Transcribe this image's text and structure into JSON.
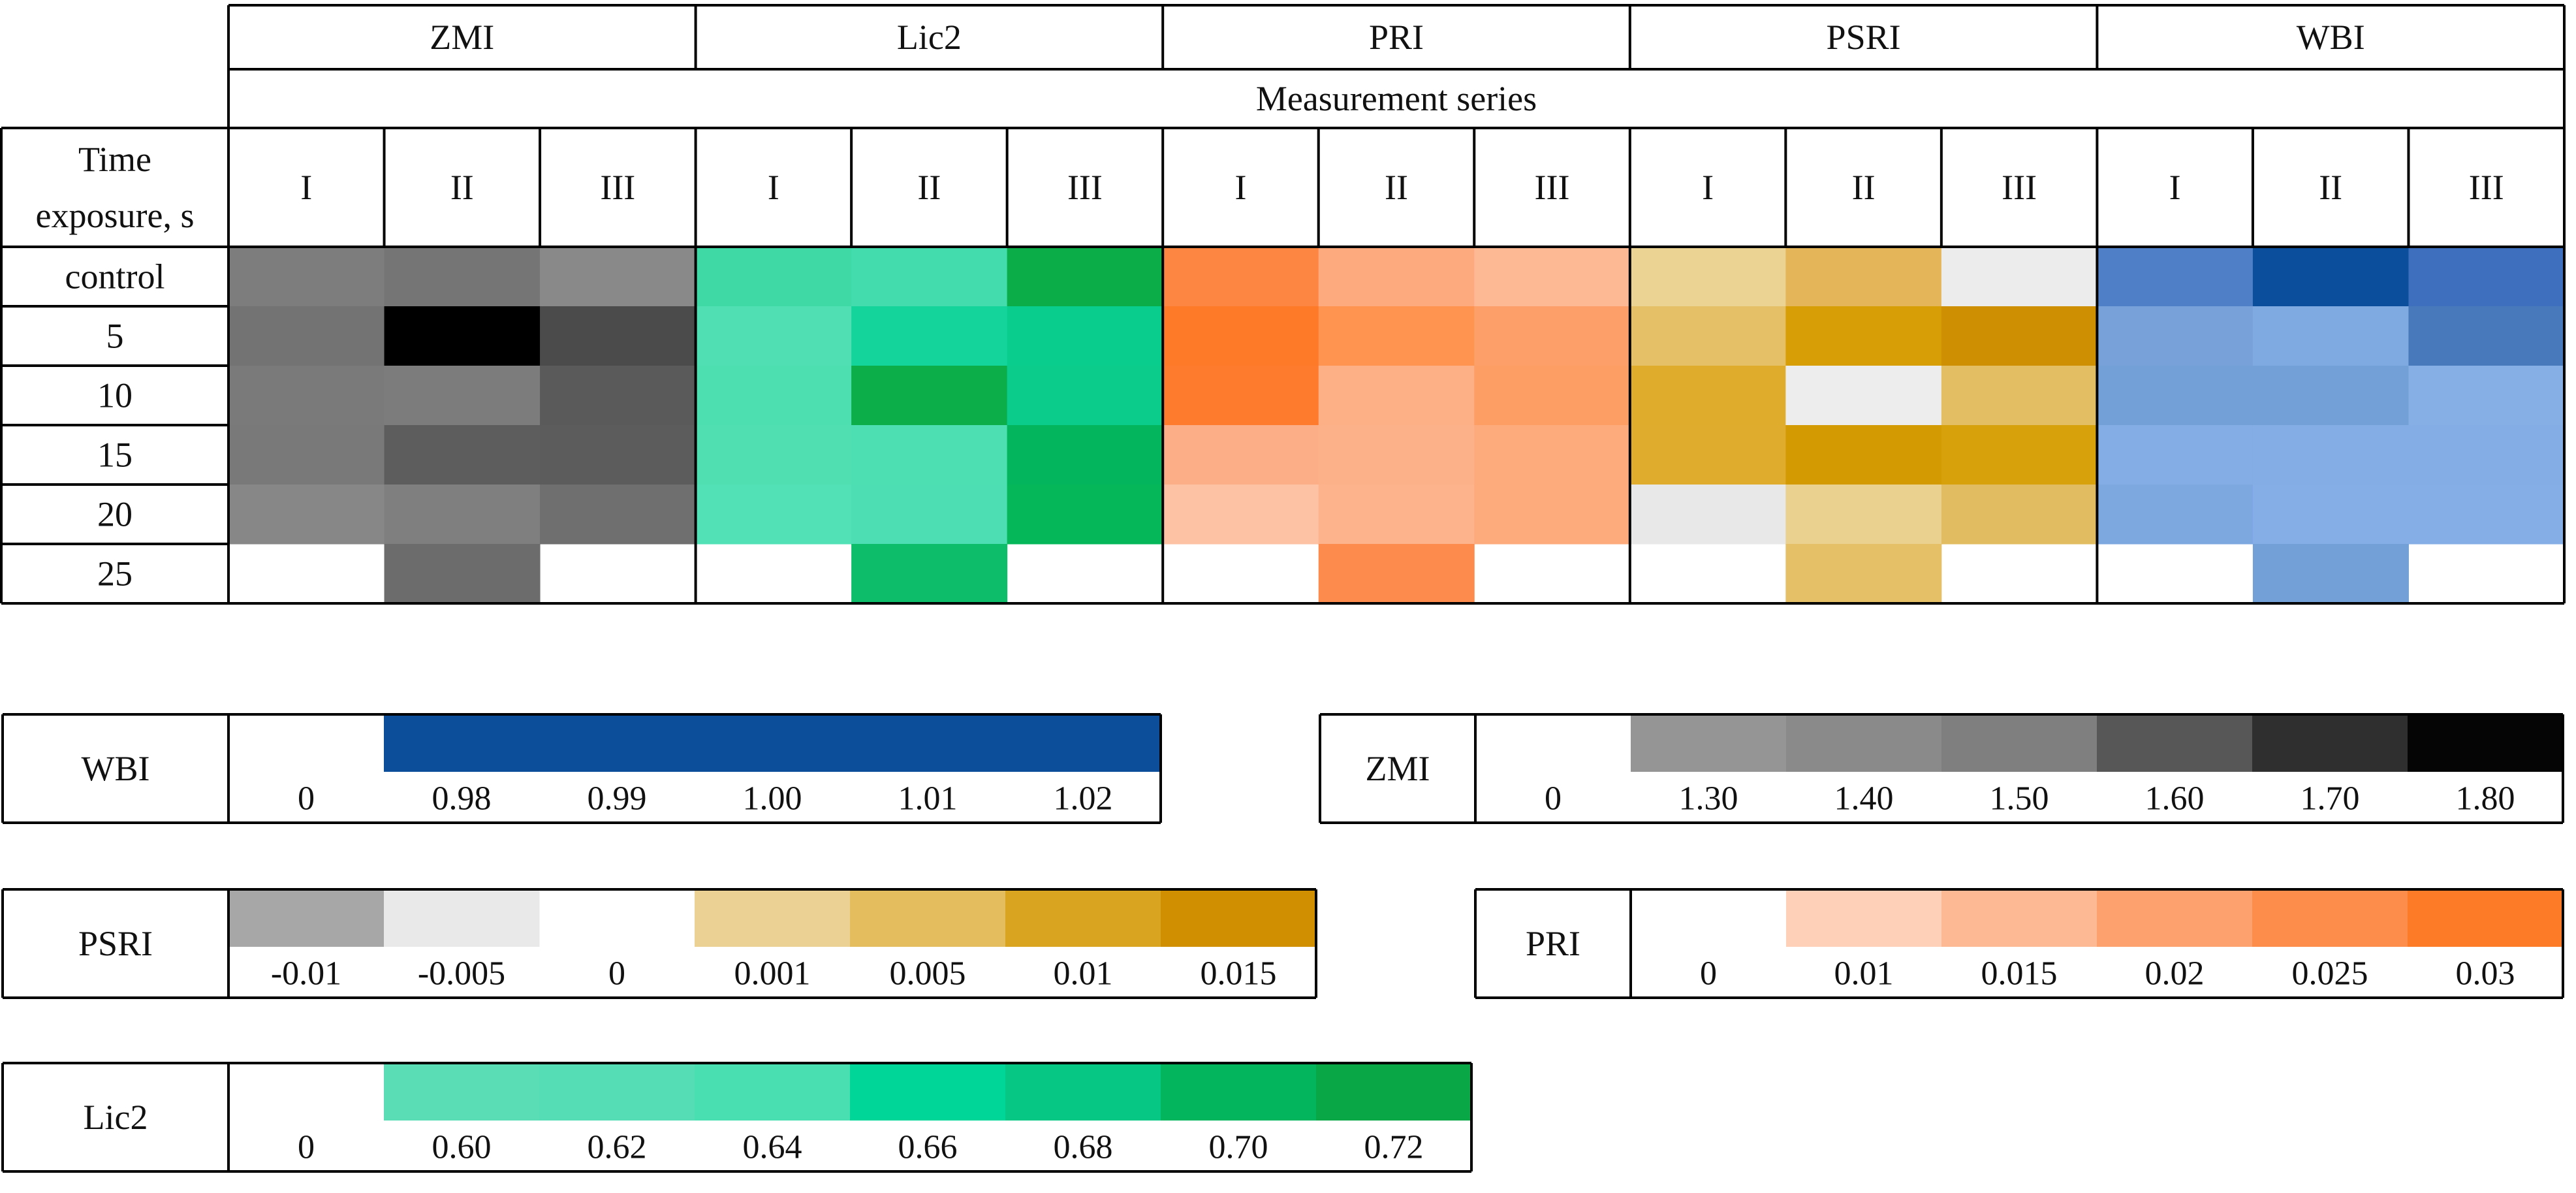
{
  "chart_data": [
    {
      "type": "heatmap",
      "title": "",
      "row_header": "Time\nexposure, s",
      "series_header": "Measurement series",
      "indices": [
        "ZMI",
        "Lic2",
        "PRI",
        "PSRI",
        "WBI"
      ],
      "series": [
        "I",
        "II",
        "III"
      ],
      "rows": [
        "control",
        "5",
        "10",
        "15",
        "20",
        "25"
      ],
      "colors": {
        "ZMI": [
          [
            "#7d7d7d",
            "#757575",
            "#898989"
          ],
          [
            "#737373",
            "#000000",
            "#4b4b4b"
          ],
          [
            "#7a7a7a",
            "#7c7c7c",
            "#5a5a5a"
          ],
          [
            "#797979",
            "#5d5d5d",
            "#5c5c5c"
          ],
          [
            "#878787",
            "#7f7f7f",
            "#6f6f6f"
          ],
          [
            null,
            "#6c6c6c",
            null
          ]
        ],
        "Lic2": [
          [
            "#3fd9a6",
            "#42dcad",
            "#0aad47"
          ],
          [
            "#4fdfb3",
            "#14d49c",
            "#08cd8d"
          ],
          [
            "#4ddfaf",
            "#0cae49",
            "#0bcc8b"
          ],
          [
            "#4fdfb1",
            "#4ddfb1",
            "#03b55c"
          ],
          [
            "#52e0b6",
            "#4edeb3",
            "#05b759"
          ],
          [
            null,
            "#0dbd69",
            null
          ]
        ],
        "PRI": [
          [
            "#fd8643",
            "#fdab7e",
            "#fdb894"
          ],
          [
            "#fe7a29",
            "#fe944f",
            "#fd9f68"
          ],
          [
            "#fe7a2c",
            "#fdb086",
            "#fd9e65"
          ],
          [
            "#fcaf86",
            "#fdb188",
            "#fdaa7d"
          ],
          [
            "#fdc2a3",
            "#fdb38b",
            "#fdaa7d"
          ],
          [
            null,
            "#fd8b4d",
            null
          ]
        ],
        "PSRI": [
          [
            "#ebd394",
            "#e4b659",
            "#ececec"
          ],
          [
            "#e5c066",
            "#d79f05",
            "#cf8f02"
          ],
          [
            "#dfac2b",
            "#ededed",
            "#e4be62"
          ],
          [
            "#dfac2d",
            "#d39a01",
            "#d6a10a"
          ],
          [
            "#e8e8e8",
            "#ebd190",
            "#e2bc60"
          ],
          [
            null,
            "#e5c066",
            null
          ]
        ],
        "WBI": [
          [
            "#4f7fc6",
            "#0b4e9c",
            "#3d6fbe"
          ],
          [
            "#79a1d9",
            "#7fa9e1",
            "#4879ba"
          ],
          [
            "#73a0d7",
            "#73a0d7",
            "#86afe5"
          ],
          [
            "#83ade4",
            "#83ade4",
            "#83ade4"
          ],
          [
            "#7ca7df",
            "#84aee5",
            "#84aee5"
          ],
          [
            null,
            "#73a0d7",
            null
          ]
        ]
      }
    },
    {
      "type": "color-scale",
      "name": "WBI",
      "labels": [
        "0",
        "0.98",
        "0.99",
        "1.00",
        "1.01",
        "1.02"
      ],
      "colors": [
        null,
        "#0d4e9b",
        "#0d4e9b",
        "#0d4e9b",
        "#0d4e9b",
        "#0d4e9b"
      ]
    },
    {
      "type": "color-scale",
      "name": "ZMI",
      "labels": [
        "0",
        "1.30",
        "1.40",
        "1.50",
        "1.60",
        "1.70",
        "1.80"
      ],
      "colors": [
        null,
        "#959595",
        "#8a8a8a",
        "#7f7f7f",
        "#575757",
        "#2f2f2f",
        "#050505"
      ]
    },
    {
      "type": "color-scale",
      "name": "PSRI",
      "labels": [
        "-0.01",
        "-0.005",
        "0",
        "0.001",
        "0.005",
        "0.01",
        "0.015"
      ],
      "colors": [
        "#a7a7a7",
        "#e9e9e9",
        null,
        "#ebd194",
        "#e4bd5e",
        "#d9a41f",
        "#cf8f00"
      ]
    },
    {
      "type": "color-scale",
      "name": "PRI",
      "labels": [
        "0",
        "0.01",
        "0.015",
        "0.02",
        "0.025",
        "0.03"
      ],
      "colors": [
        null,
        "#fdd0b7",
        "#fdb994",
        "#fda26f",
        "#fd8d4b",
        "#fd7a26"
      ]
    },
    {
      "type": "color-scale",
      "name": "Lic2",
      "labels": [
        "0",
        "0.60",
        "0.62",
        "0.64",
        "0.66",
        "0.68",
        "0.70",
        "0.72"
      ],
      "colors": [
        null,
        "#5adcb5",
        "#55deb5",
        "#4adfb0",
        "#00d698",
        "#07c784",
        "#03b55c",
        "#0aa746"
      ]
    }
  ]
}
